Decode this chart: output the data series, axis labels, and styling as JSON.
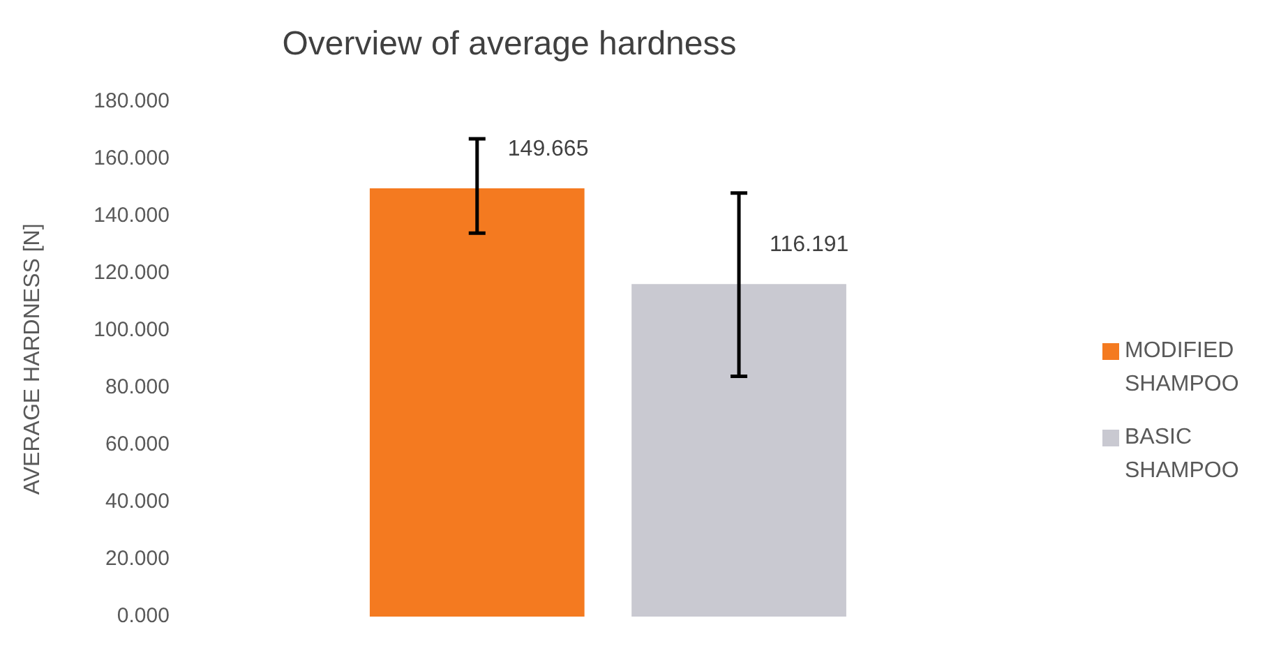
{
  "chart_data": {
    "type": "bar",
    "title": "Overview of average hardness",
    "ylabel": "AVERAGE HARDNESS [N]",
    "categories": [
      null
    ],
    "series": [
      {
        "name": "MODIFIED SHAMPOO",
        "color": "#f47a20",
        "values": [
          149.665
        ],
        "errors": [
          [
            134,
            167
          ]
        ]
      },
      {
        "name": "BASIC SHAMPOO",
        "color": "#c9c9d1",
        "values": [
          116.191
        ],
        "errors": [
          [
            84,
            148
          ]
        ]
      }
    ],
    "ylim": [
      0,
      180
    ],
    "yticks": [
      {
        "value": 0,
        "label": "0.000"
      },
      {
        "value": 20,
        "label": "20.000"
      },
      {
        "value": 40,
        "label": "40.000"
      },
      {
        "value": 60,
        "label": "60.000"
      },
      {
        "value": 80,
        "label": "80.000"
      },
      {
        "value": 100,
        "label": "100.000"
      },
      {
        "value": 120,
        "label": "120.000"
      },
      {
        "value": 140,
        "label": "140.000"
      },
      {
        "value": 160,
        "label": "160.000"
      },
      {
        "value": 180,
        "label": "180.000"
      }
    ],
    "data_labels": true,
    "grid": false,
    "legend": "right"
  }
}
